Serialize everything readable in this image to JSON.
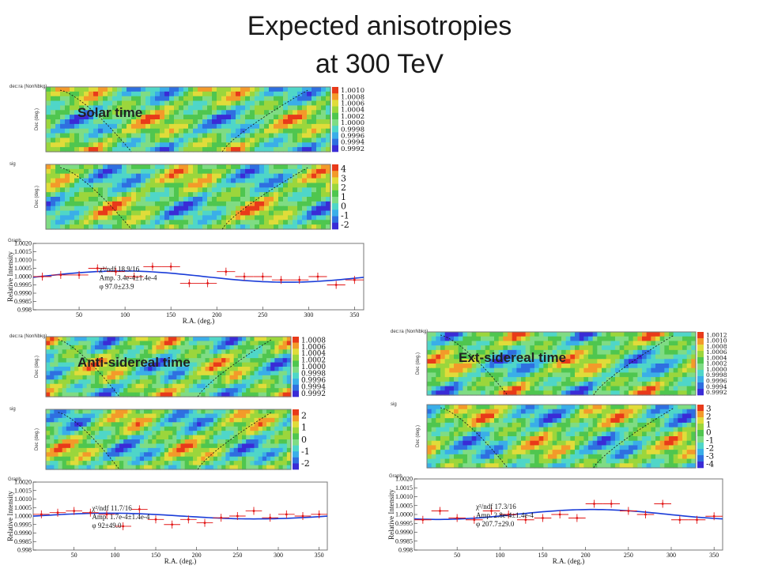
{
  "slide": {
    "title_line1": "Expected anisotropies",
    "title_line2": "at 300 TeV"
  },
  "colors": {
    "point": "#e11515",
    "fit_line": "#1a3cd8",
    "frame": "#777777",
    "map_palette": [
      "#3a2bd6",
      "#2f6fe0",
      "#3aaee8",
      "#4fd6c8",
      "#7fdc84",
      "#4fc64f",
      "#9bd63c",
      "#e0dc3a",
      "#f39a2a",
      "#e83a1a"
    ]
  },
  "chart_data": [
    {
      "type": "heatmap",
      "label": "Solar time",
      "hist_title": "dec:ra (NonNbkg)",
      "ylabel": "Dec (deg.)",
      "color_scale": [
        "1.0010",
        "1.0008",
        "1.0006",
        "1.0004",
        "1.0002",
        "1.0000",
        "0.9998",
        "0.9996",
        "0.9994",
        "0.9992"
      ]
    },
    {
      "type": "heatmap",
      "label": "",
      "hist_title": "sig",
      "ylabel": "Dec (deg.)",
      "color_scale": [
        "4",
        "3",
        "2",
        "1",
        "0",
        "-1",
        "-2"
      ]
    },
    {
      "type": "scatter",
      "hist_title": "Graph",
      "xlabel": "R.A. (deg.)",
      "ylabel": "Relative Intensity",
      "xlim": [
        0,
        360
      ],
      "ylim": [
        0.998,
        1.002
      ],
      "xticks": [
        "50",
        "100",
        "150",
        "200",
        "250",
        "300",
        "350"
      ],
      "yticks": [
        "1.0020",
        "1.0015",
        "1.0010",
        "1.0005",
        "1.0000",
        "0.9995",
        "0.9990",
        "0.9985",
        "0.998"
      ],
      "fit_text": {
        "chi2": "χ²/ndf  18.9/16",
        "amp": "Amp.    3.4e-4±1.4e-4",
        "phase": "φ         97.0±23.9"
      },
      "fit": {
        "amplitude": 0.00034,
        "phase_deg": 97.0
      },
      "x": [
        10,
        30,
        50,
        70,
        90,
        110,
        130,
        150,
        170,
        190,
        210,
        230,
        250,
        270,
        290,
        310,
        330,
        350
      ],
      "y": [
        1.0,
        1.0001,
        1.0001,
        1.0005,
        1.0003,
        1.0,
        1.0006,
        1.0006,
        0.9996,
        0.9996,
        1.0003,
        1.0,
        1.0,
        0.9998,
        0.9998,
        1.0,
        0.9995,
        0.9998
      ]
    },
    {
      "type": "heatmap",
      "label": "Anti-sidereal time",
      "hist_title": "dec:ra (NonNbkg)",
      "ylabel": "Dec (deg.)",
      "color_scale": [
        "1.0008",
        "1.0006",
        "1.0004",
        "1.0002",
        "1.0000",
        "0.9998",
        "0.9996",
        "0.9994",
        "0.9992"
      ]
    },
    {
      "type": "heatmap",
      "label": "",
      "hist_title": "sig",
      "ylabel": "Dec (deg.)",
      "color_scale": [
        "2",
        "1",
        "0",
        "-1",
        "-2"
      ]
    },
    {
      "type": "scatter",
      "hist_title": "Graph",
      "xlabel": "R.A. (deg.)",
      "ylabel": "Relative Intensity",
      "xlim": [
        0,
        360
      ],
      "ylim": [
        0.998,
        1.002
      ],
      "xticks": [
        "50",
        "100",
        "150",
        "200",
        "250",
        "300",
        "350"
      ],
      "yticks": [
        "1.0020",
        "1.0015",
        "1.0010",
        "1.0005",
        "1.0000",
        "0.9995",
        "0.9990",
        "0.9985",
        "0.998"
      ],
      "fit_text": {
        "chi2": "χ²/ndf  11.7/16",
        "amp": "Amp.    1.7e-4±1.4e-4",
        "phase": "φ         92±49.0"
      },
      "fit": {
        "amplitude": 0.00017,
        "phase_deg": 92
      },
      "x": [
        10,
        30,
        50,
        70,
        90,
        110,
        130,
        150,
        170,
        190,
        210,
        230,
        250,
        270,
        290,
        310,
        330,
        350
      ],
      "y": [
        1.0001,
        1.0002,
        1.0003,
        1.0002,
        1.0001,
        0.9994,
        1.0004,
        0.9998,
        0.9995,
        0.9998,
        0.9996,
        0.9999,
        1.0,
        1.0003,
        0.9999,
        1.0001,
        1.0,
        1.0001
      ]
    },
    {
      "type": "heatmap",
      "label": "Ext-sidereal time",
      "hist_title": "dec:ra (NonNbkg)",
      "ylabel": "Dec (deg.)",
      "color_scale": [
        "1.0012",
        "1.0010",
        "1.0008",
        "1.0006",
        "1.0004",
        "1.0002",
        "1.0000",
        "0.9998",
        "0.9996",
        "0.9994",
        "0.9992"
      ]
    },
    {
      "type": "heatmap",
      "label": "",
      "hist_title": "sig",
      "ylabel": "Dec (deg.)",
      "color_scale": [
        "3",
        "2",
        "1",
        "0",
        "-1",
        "-2",
        "-3",
        "-4"
      ]
    },
    {
      "type": "scatter",
      "hist_title": "Graph",
      "xlabel": "R.A. (deg.)",
      "ylabel": "Relative Intensity",
      "xlim": [
        0,
        360
      ],
      "ylim": [
        0.998,
        1.002
      ],
      "xticks": [
        "50",
        "100",
        "150",
        "200",
        "250",
        "300",
        "350"
      ],
      "yticks": [
        "1.0020",
        "1.0015",
        "1.0010",
        "1.0005",
        "1.0000",
        "0.9995",
        "0.9990",
        "0.9985",
        "0.998"
      ],
      "fit_text": {
        "chi2": "χ²/ndf  17.3/16",
        "amp": "Amp.    2.8e-4±1.4e-4",
        "phase": "φ         207.7±29.0"
      },
      "fit": {
        "amplitude": 0.00028,
        "phase_deg": 207.7
      },
      "x": [
        10,
        30,
        50,
        70,
        90,
        110,
        130,
        150,
        170,
        190,
        210,
        230,
        250,
        270,
        290,
        310,
        330,
        350
      ],
      "y": [
        0.9997,
        1.0002,
        0.9998,
        0.9997,
        1.0002,
        1.0,
        0.9997,
        0.9998,
        1.0,
        0.9998,
        1.0006,
        1.0006,
        1.0002,
        1.0,
        1.0006,
        0.9997,
        0.9997,
        0.9999
      ]
    }
  ]
}
